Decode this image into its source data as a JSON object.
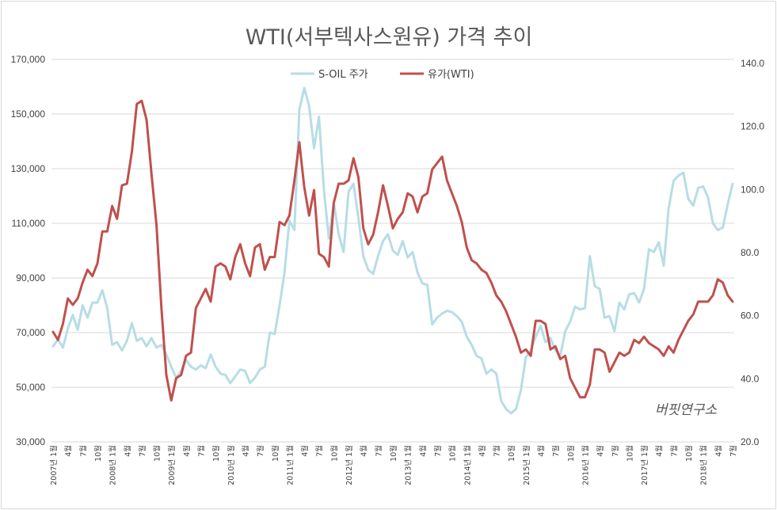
{
  "chart_data": {
    "type": "line",
    "title": "WTI(서부텍사스원유) 가격 추이",
    "watermark": "버핏연구소",
    "y_left": {
      "ticks": [
        "170,000",
        "150,000",
        "130,000",
        "110,000",
        "90,000",
        "70,000",
        "50,000",
        "30,000"
      ],
      "ylim": [
        30000,
        170000
      ]
    },
    "y_right": {
      "ticks": [
        "140.0",
        "120.0",
        "100.0",
        "80.0",
        "60.0",
        "40.0",
        "20.0"
      ],
      "ylim": [
        20,
        140
      ]
    },
    "x_labels": [
      "2007년 1월",
      "4월",
      "7월",
      "10월",
      "2008년 1월",
      "4월",
      "7월",
      "10월",
      "2009년 1월",
      "4월",
      "7월",
      "10월",
      "2010년 1월",
      "4월",
      "7월",
      "10월",
      "2011년 1월",
      "4월",
      "7월",
      "10월",
      "2012년 1월",
      "4월",
      "7월",
      "10월",
      "2013년 1월",
      "4월",
      "7월",
      "10월",
      "2014년 1월",
      "4월",
      "7월",
      "10월",
      "2015년 1월",
      "4월",
      "7월",
      "10월",
      "2016년 1월",
      "4월",
      "7월",
      "10월",
      "2017년 1월",
      "4월",
      "7월",
      "10월",
      "2018년 1월",
      "4월",
      "7월"
    ],
    "legend_position": "top",
    "grid": "horizontal",
    "series": [
      {
        "name": "S-OIL 주가",
        "axis": "left",
        "color": "#b7dde6",
        "values": [
          65000,
          67500,
          64500,
          71500,
          76500,
          71000,
          80000,
          75500,
          81000,
          81000,
          85500,
          79000,
          65500,
          66500,
          63500,
          67000,
          73500,
          67000,
          68000,
          65000,
          68000,
          64500,
          65500,
          62000,
          57500,
          53500,
          56000,
          60000,
          57500,
          56500,
          58000,
          57000,
          62000,
          57500,
          55000,
          54500,
          51500,
          54000,
          56500,
          56000,
          51500,
          53500,
          56500,
          57500,
          70000,
          69500,
          80000,
          92000,
          111000,
          107500,
          151500,
          159500,
          153000,
          137500,
          149000,
          122000,
          104500,
          117500,
          106000,
          99500,
          121500,
          124500,
          112000,
          98000,
          93000,
          91500,
          98000,
          103500,
          106000,
          100000,
          98500,
          103500,
          97500,
          99500,
          92000,
          88000,
          87500,
          73000,
          75500,
          77000,
          78000,
          77500,
          76000,
          74000,
          68500,
          65500,
          61500,
          60500,
          55000,
          56500,
          55000,
          45000,
          42000,
          40500,
          42000,
          49000,
          61000,
          63500,
          68500,
          72500,
          66500,
          68000,
          63500,
          61500,
          70500,
          74000,
          79500,
          78500,
          79000,
          98000,
          87000,
          86000,
          75500,
          76000,
          70500,
          81000,
          78500,
          84000,
          84500,
          81000,
          86000,
          100500,
          99500,
          103000,
          94500,
          115500,
          125500,
          127500,
          128500,
          119000,
          116500,
          123000,
          123500,
          119500,
          110000,
          107500,
          108500,
          117000,
          124500
        ]
      },
      {
        "name": "유가(WTI)",
        "axis": "right",
        "color": "#c0504d",
        "values": [
          54.5,
          52,
          57,
          65,
          63,
          65,
          70,
          74,
          72,
          76,
          86,
          86,
          94,
          90,
          100.5,
          101,
          111,
          126,
          127,
          121,
          104,
          88,
          62,
          41,
          33,
          40,
          41,
          47,
          48,
          62,
          65,
          68,
          64,
          75,
          76,
          75,
          71,
          78,
          82,
          76,
          72,
          81,
          82,
          74,
          78,
          78,
          89,
          88,
          91,
          102,
          114,
          100,
          91,
          99,
          79,
          78,
          75,
          95,
          101,
          101,
          102,
          109,
          103,
          87,
          82,
          85,
          92,
          100.5,
          94,
          87,
          90,
          92,
          98,
          97,
          92,
          97,
          98,
          105.5,
          107.5,
          109.5,
          102,
          98,
          94,
          89,
          81,
          77,
          76,
          74,
          73,
          70,
          66,
          64,
          61,
          57,
          53,
          48,
          49,
          47,
          58,
          58,
          57,
          49,
          50,
          46,
          47,
          40,
          37,
          34,
          34,
          38,
          49,
          49,
          48,
          42,
          45,
          48,
          47,
          48,
          52,
          51,
          53,
          51,
          50,
          49,
          47,
          50,
          48,
          52,
          55,
          58,
          60,
          64,
          64,
          64,
          66,
          71,
          70,
          66,
          64
        ]
      }
    ]
  }
}
